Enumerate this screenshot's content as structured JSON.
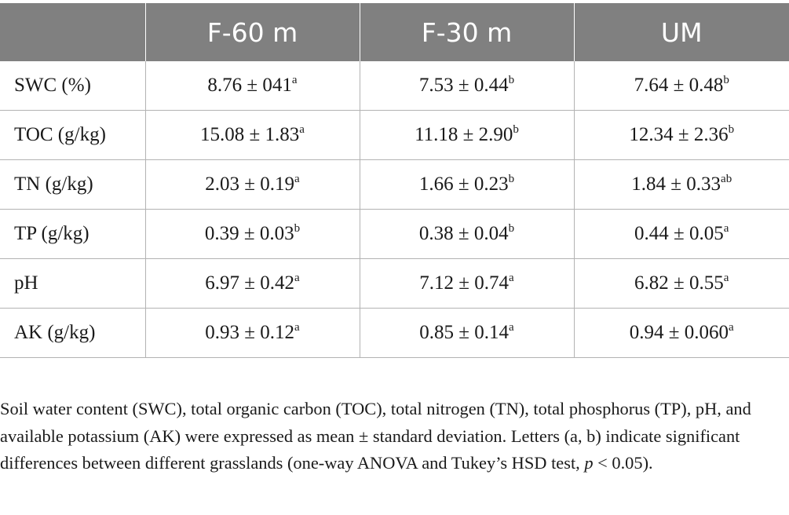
{
  "table": {
    "headers": [
      "",
      "F-60 m",
      "F-30 m",
      "UM"
    ],
    "rows": [
      {
        "label": "SWC (%)",
        "cells": [
          {
            "value": "8.76 ± 041",
            "sup": "a"
          },
          {
            "value": "7.53 ± 0.44",
            "sup": "b"
          },
          {
            "value": "7.64 ± 0.48",
            "sup": "b"
          }
        ]
      },
      {
        "label": "TOC (g/kg)",
        "cells": [
          {
            "value": "15.08 ± 1.83",
            "sup": "a"
          },
          {
            "value": "11.18 ± 2.90",
            "sup": "b"
          },
          {
            "value": "12.34 ± 2.36",
            "sup": "b"
          }
        ]
      },
      {
        "label": "TN (g/kg)",
        "cells": [
          {
            "value": "2.03 ± 0.19",
            "sup": "a"
          },
          {
            "value": "1.66 ± 0.23",
            "sup": "b"
          },
          {
            "value": "1.84 ± 0.33",
            "sup": "ab"
          }
        ]
      },
      {
        "label": "TP (g/kg)",
        "cells": [
          {
            "value": "0.39 ± 0.03",
            "sup": "b"
          },
          {
            "value": "0.38 ± 0.04",
            "sup": "b"
          },
          {
            "value": "0.44 ± 0.05",
            "sup": "a"
          }
        ]
      },
      {
        "label": "pH",
        "cells": [
          {
            "value": "6.97 ± 0.42",
            "sup": "a"
          },
          {
            "value": "7.12 ± 0.74",
            "sup": "a"
          },
          {
            "value": "6.82 ± 0.55",
            "sup": "a"
          }
        ]
      },
      {
        "label": "AK (g/kg)",
        "cells": [
          {
            "value": "0.93 ± 0.12",
            "sup": "a"
          },
          {
            "value": "0.85 ± 0.14",
            "sup": "a"
          },
          {
            "value": "0.94 ± 0.060",
            "sup": "a"
          }
        ]
      }
    ]
  },
  "footnote": {
    "text_before": "Soil water content (SWC), total organic carbon (TOC), total nitrogen (TN), total phosphorus (TP), pH, and available potassium (AK) were expressed as mean ± standard deviation. Letters (a, b) indicate significant differences between different grasslands (one-way ANOVA and Tukey’s HSD test, ",
    "p_symbol": "p",
    "text_after": " < 0.05)."
  },
  "colors": {
    "header_bg": "#808080",
    "header_text": "#ffffff",
    "rule": "#b3b3b3"
  }
}
